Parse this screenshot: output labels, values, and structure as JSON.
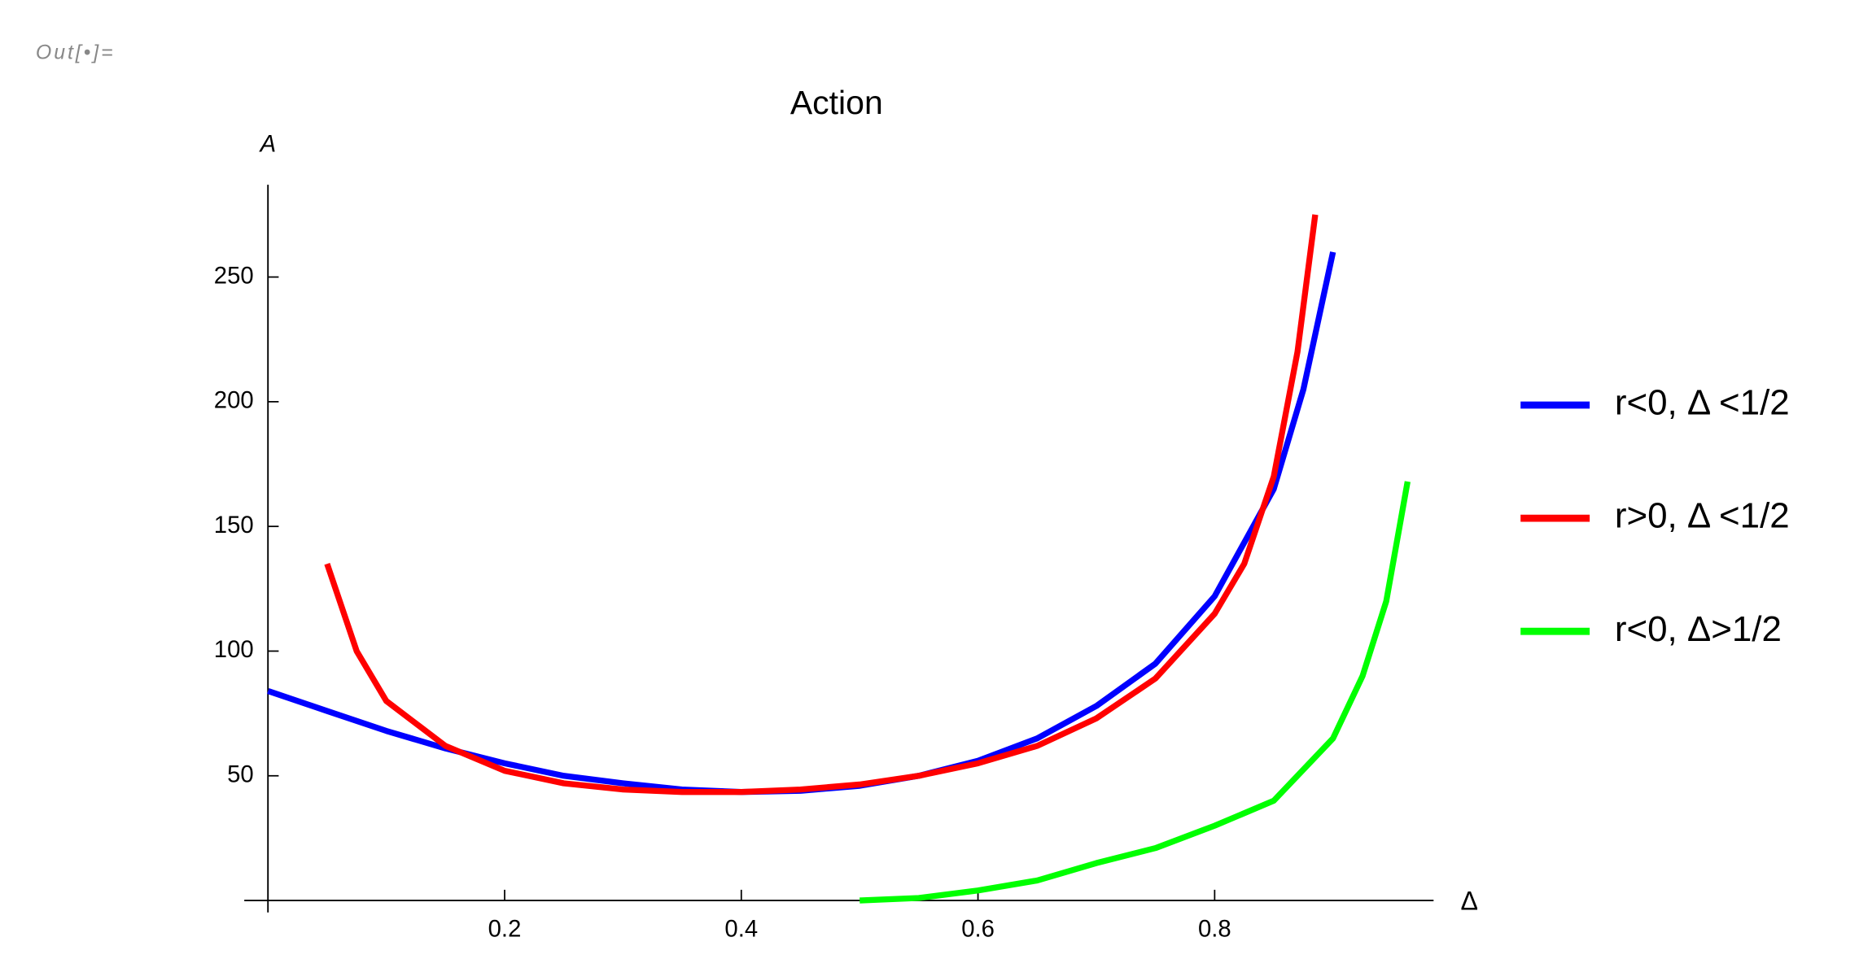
{
  "cell_label": "Out[•]=",
  "chart_data": {
    "type": "line",
    "title": "Action",
    "x_label": "Δ",
    "y_label": "A",
    "xlim": [
      -0.02,
      0.985
    ],
    "ylim": [
      0,
      287
    ],
    "xticks": [
      0.2,
      0.4,
      0.6,
      0.8
    ],
    "yticks": [
      50,
      100,
      150,
      200,
      250
    ],
    "legend": "right",
    "series": [
      {
        "name": "r<0, Δ <1/2",
        "color": "#0000ff",
        "x": [
          0,
          0.05,
          0.1,
          0.15,
          0.2,
          0.25,
          0.3,
          0.35,
          0.4,
          0.45,
          0.5,
          0.55,
          0.6,
          0.65,
          0.7,
          0.75,
          0.8,
          0.85,
          0.875,
          0.9
        ],
        "values": [
          84,
          76,
          68,
          61,
          55,
          50,
          47,
          44.5,
          43.5,
          44,
          46,
          50,
          56,
          65,
          78,
          95,
          122,
          165,
          205,
          260
        ]
      },
      {
        "name": "r>0, Δ <1/2",
        "color": "#ff0000",
        "x": [
          0.05,
          0.075,
          0.1,
          0.15,
          0.2,
          0.25,
          0.3,
          0.35,
          0.4,
          0.45,
          0.5,
          0.55,
          0.6,
          0.65,
          0.7,
          0.75,
          0.8,
          0.825,
          0.85,
          0.87,
          0.885
        ],
        "values": [
          135,
          100,
          80,
          62,
          52,
          47,
          44.5,
          43.5,
          43.5,
          44.5,
          46.5,
          50,
          55,
          62,
          73,
          89,
          115,
          135,
          170,
          220,
          275
        ]
      },
      {
        "name": "r<0, Δ>1/2",
        "color": "#00ff00",
        "x": [
          0.5,
          0.55,
          0.6,
          0.65,
          0.7,
          0.75,
          0.8,
          0.85,
          0.9,
          0.925,
          0.945,
          0.963
        ],
        "values": [
          0,
          1,
          4,
          8,
          15,
          21,
          30,
          40,
          65,
          90,
          120,
          168
        ]
      }
    ]
  }
}
